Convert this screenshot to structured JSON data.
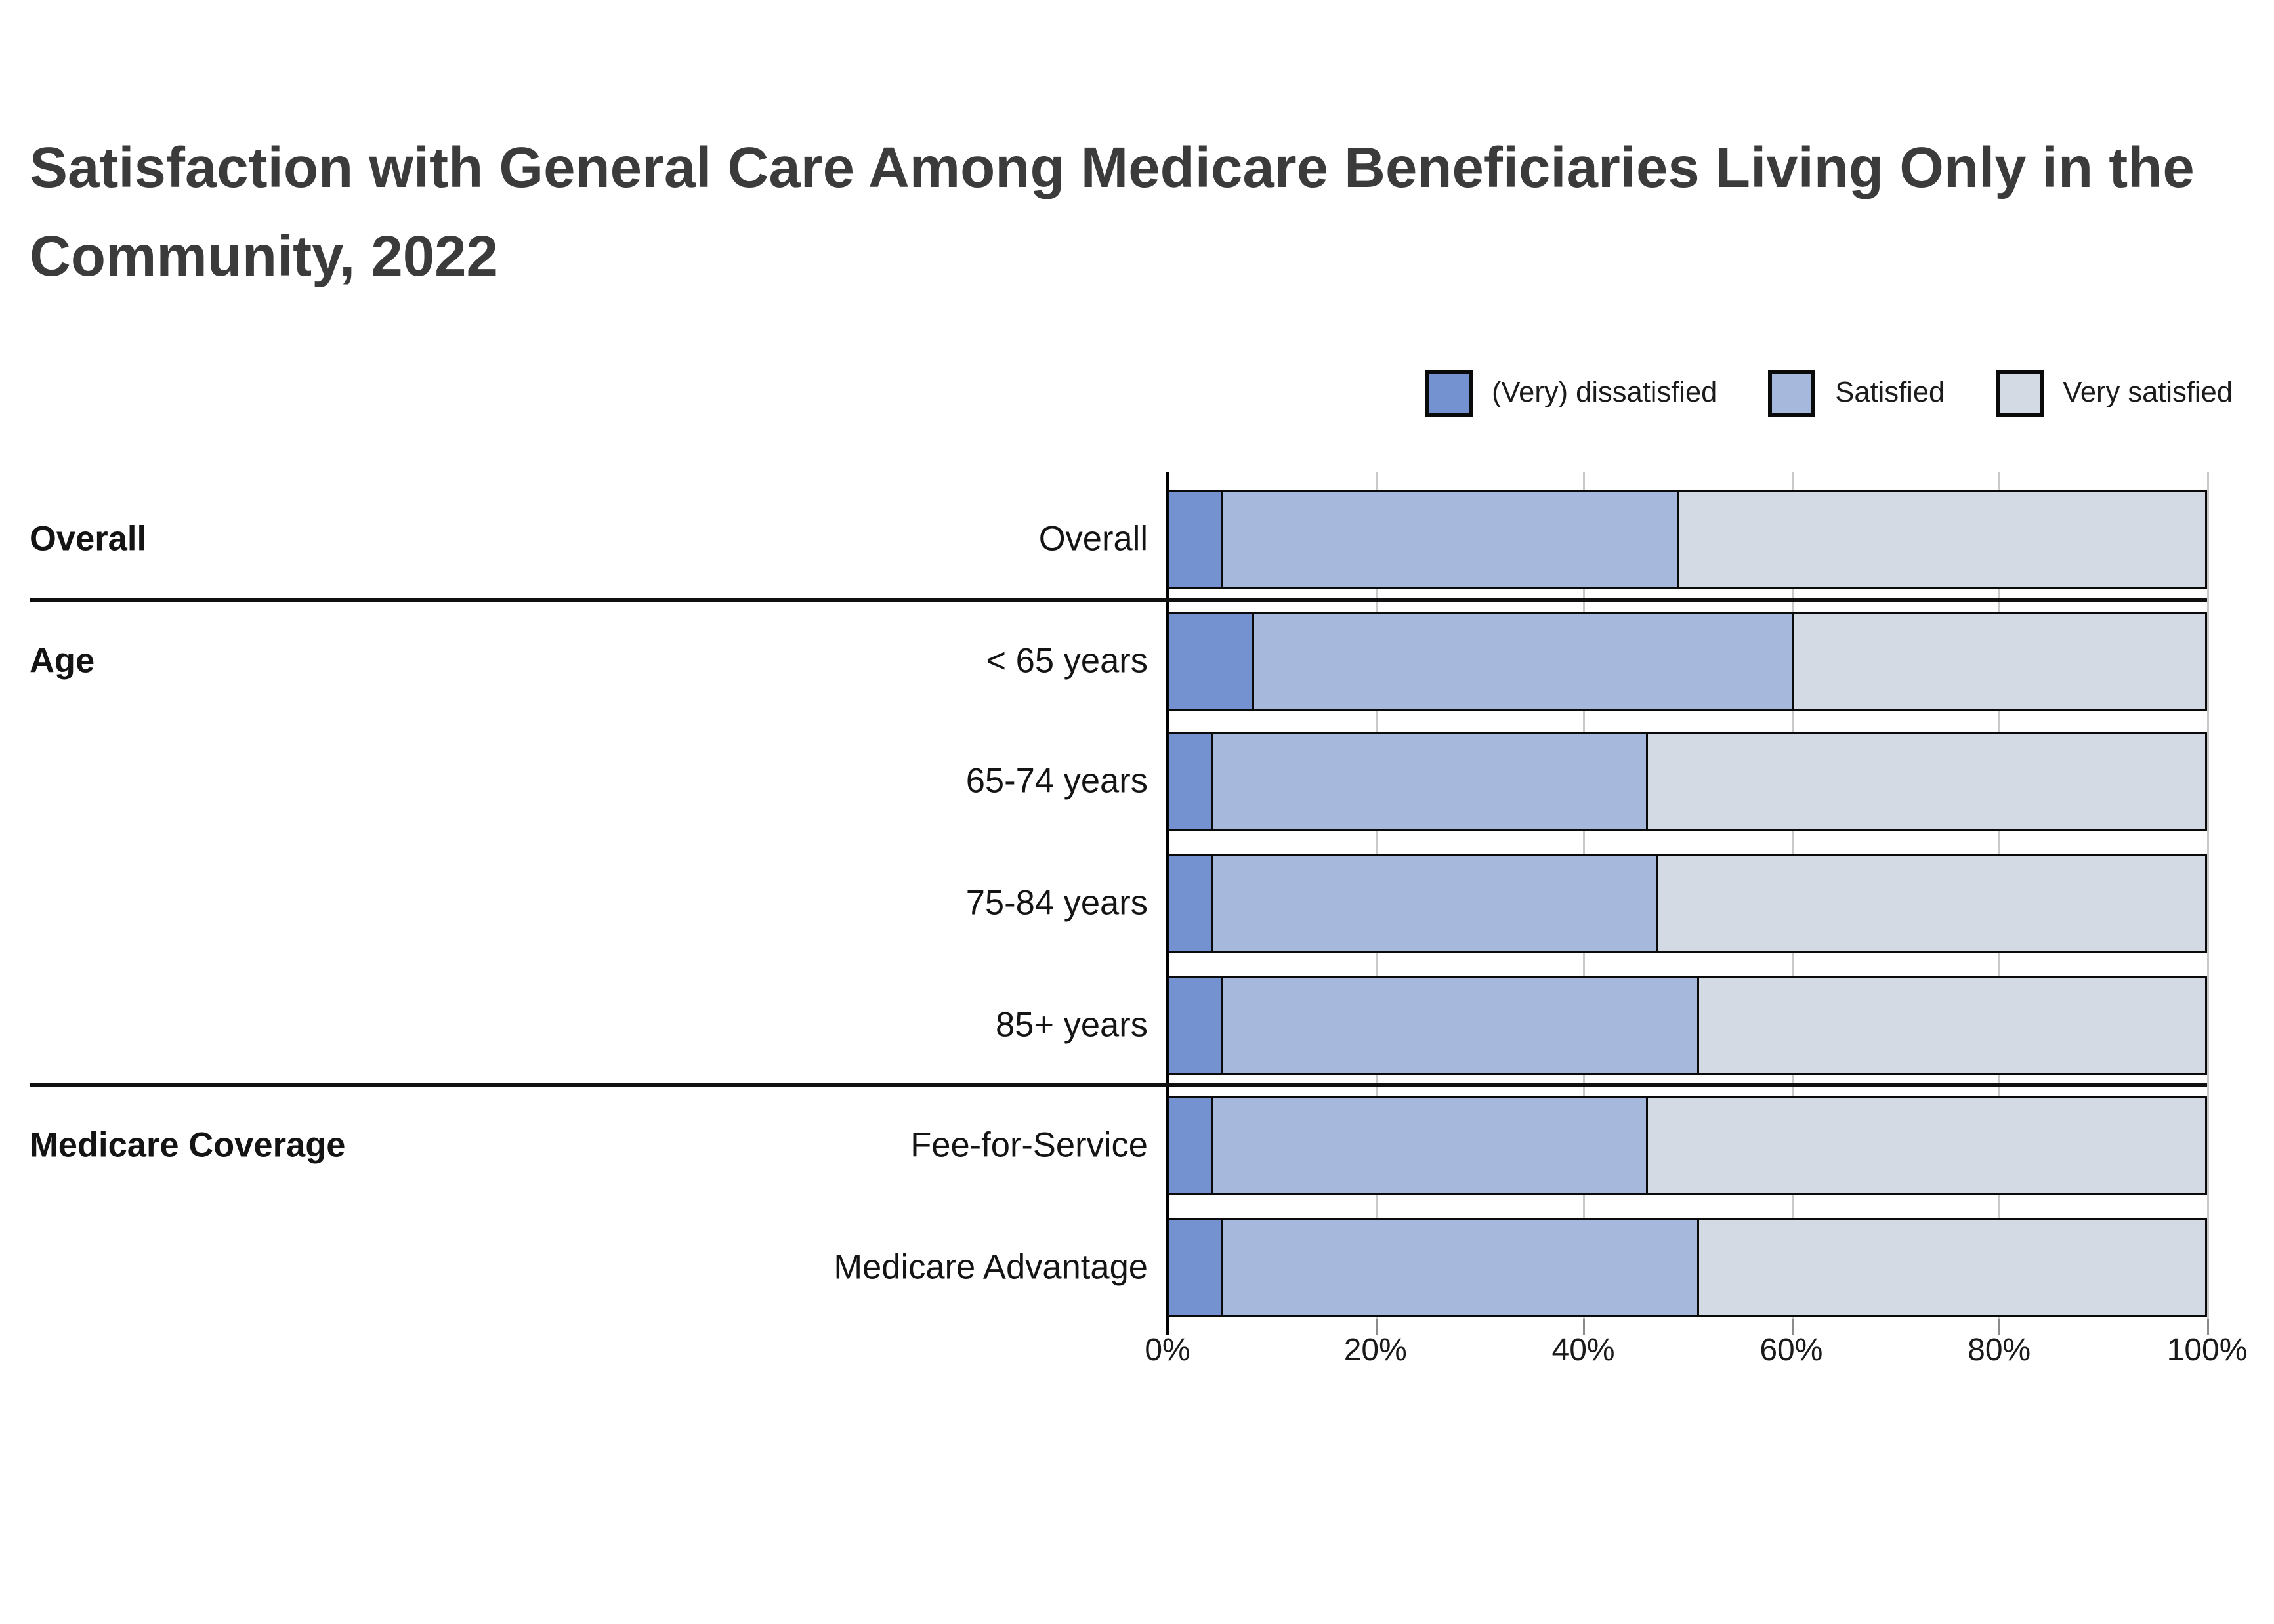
{
  "title": "Satisfaction with General Care Among Medicare Beneficiaries Living Only in the Community, 2022",
  "colors": {
    "dissatisfied": "#7492CF",
    "satisfied": "#A6B8DB",
    "very_satisfied": "#D4DAE4",
    "bar_border": "#0a0a0a",
    "grid": "#c9c9c9",
    "axis_line": "#000000",
    "title_text": "#3b3b3b",
    "label_text": "#141414"
  },
  "legend": {
    "items": [
      {
        "label": "(Very) dissatisfied",
        "color": "#7492CF"
      },
      {
        "label": "Satisfied",
        "color": "#A6B8DB"
      },
      {
        "label": "Very satisfied",
        "color": "#D4DAE4"
      }
    ]
  },
  "chart_data": {
    "type": "bar",
    "orientation": "horizontal",
    "stacked": true,
    "unit": "percent",
    "title": "Satisfaction with General Care Among Medicare Beneficiaries Living Only in the Community, 2022",
    "series_names": [
      "(Very) dissatisfied",
      "Satisfied",
      "Very satisfied"
    ],
    "xlim": [
      0,
      100
    ],
    "x_ticks": [
      "0%",
      "20%",
      "40%",
      "60%",
      "80%",
      "100%"
    ],
    "grid": "vertical",
    "legend_position": "top-right",
    "groups": [
      {
        "group": "Overall",
        "rows": [
          {
            "label": "Overall",
            "values": [
              5,
              44,
              51
            ]
          }
        ]
      },
      {
        "group": "Age",
        "rows": [
          {
            "label": "< 65 years",
            "values": [
              8,
              52,
              40
            ]
          },
          {
            "label": "65-74 years",
            "values": [
              4,
              42,
              54
            ]
          },
          {
            "label": "75-84 years",
            "values": [
              4,
              43,
              53
            ]
          },
          {
            "label": "85+ years",
            "values": [
              5,
              46,
              49
            ]
          }
        ]
      },
      {
        "group": "Medicare Coverage",
        "rows": [
          {
            "label": "Fee-for-Service",
            "values": [
              4,
              42,
              54
            ]
          },
          {
            "label": "Medicare Advantage",
            "values": [
              5,
              46,
              49
            ]
          }
        ]
      }
    ]
  }
}
